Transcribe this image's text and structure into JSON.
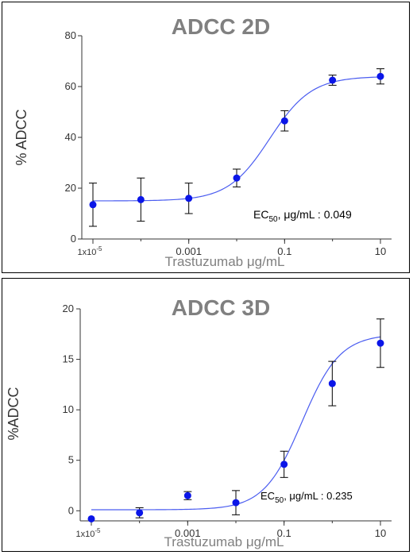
{
  "colors": {
    "point": "#0b16e8",
    "curve": "#4a5cf0",
    "errorbar": "#000000",
    "title": "#808080"
  },
  "chart_data": [
    {
      "type": "scatter",
      "title": "ADCC 2D",
      "xlabel": "Trastuzumab μg/mL",
      "ylabel": "% ADCC",
      "x_scale": "log10",
      "xlim": [
        1e-05,
        10
      ],
      "ylim": [
        0,
        80
      ],
      "x_ticks": [
        {
          "value": 1e-05,
          "base": "1x10",
          "sup": "-5"
        },
        {
          "value": 0.001,
          "label": "0.001"
        },
        {
          "value": 0.1,
          "label": "0.1"
        },
        {
          "value": 10,
          "label": "10"
        }
      ],
      "y_ticks": [
        0,
        20,
        40,
        60,
        80
      ],
      "grid": false,
      "series": [
        {
          "x": [
            1e-05,
            0.0001,
            0.001,
            0.01,
            0.1,
            1,
            10
          ],
          "y": [
            13.5,
            15.5,
            16,
            24,
            46.5,
            62.5,
            64
          ],
          "err": [
            8.5,
            8.5,
            6,
            3.5,
            4,
            2,
            3
          ]
        }
      ],
      "fit": {
        "bottom": 15,
        "top": 64,
        "ec50": 0.049,
        "hill": 1.0
      },
      "annotation": {
        "prefix": "EC",
        "sub": "50",
        "suffix": ", μg/mL : 0.049"
      }
    },
    {
      "type": "scatter",
      "title": "ADCC 3D",
      "xlabel": "Trastuzumab μg/mL",
      "ylabel": "%ADCC",
      "x_scale": "log10",
      "xlim": [
        1e-05,
        10
      ],
      "ylim": [
        -1,
        20
      ],
      "x_ticks": [
        {
          "value": 1e-05,
          "base": "1x10",
          "sup": "-5"
        },
        {
          "value": 0.001,
          "label": "0.001"
        },
        {
          "value": 0.1,
          "label": "0.1"
        },
        {
          "value": 10,
          "label": "10"
        }
      ],
      "y_ticks": [
        0,
        5,
        10,
        15,
        20
      ],
      "grid": false,
      "series": [
        {
          "x": [
            1e-05,
            0.0001,
            0.001,
            0.01,
            0.1,
            1,
            10
          ],
          "y": [
            -0.8,
            -0.2,
            1.5,
            0.8,
            4.6,
            12.6,
            16.6
          ],
          "err": [
            0,
            0.5,
            0.4,
            1.2,
            1.3,
            2.2,
            2.4
          ]
        }
      ],
      "fit": {
        "bottom": 0.1,
        "top": 17.5,
        "ec50": 0.235,
        "hill": 1.1
      },
      "annotation": {
        "prefix": "EC",
        "sub": "50",
        "suffix": ", μg/mL : 0.235"
      }
    }
  ]
}
